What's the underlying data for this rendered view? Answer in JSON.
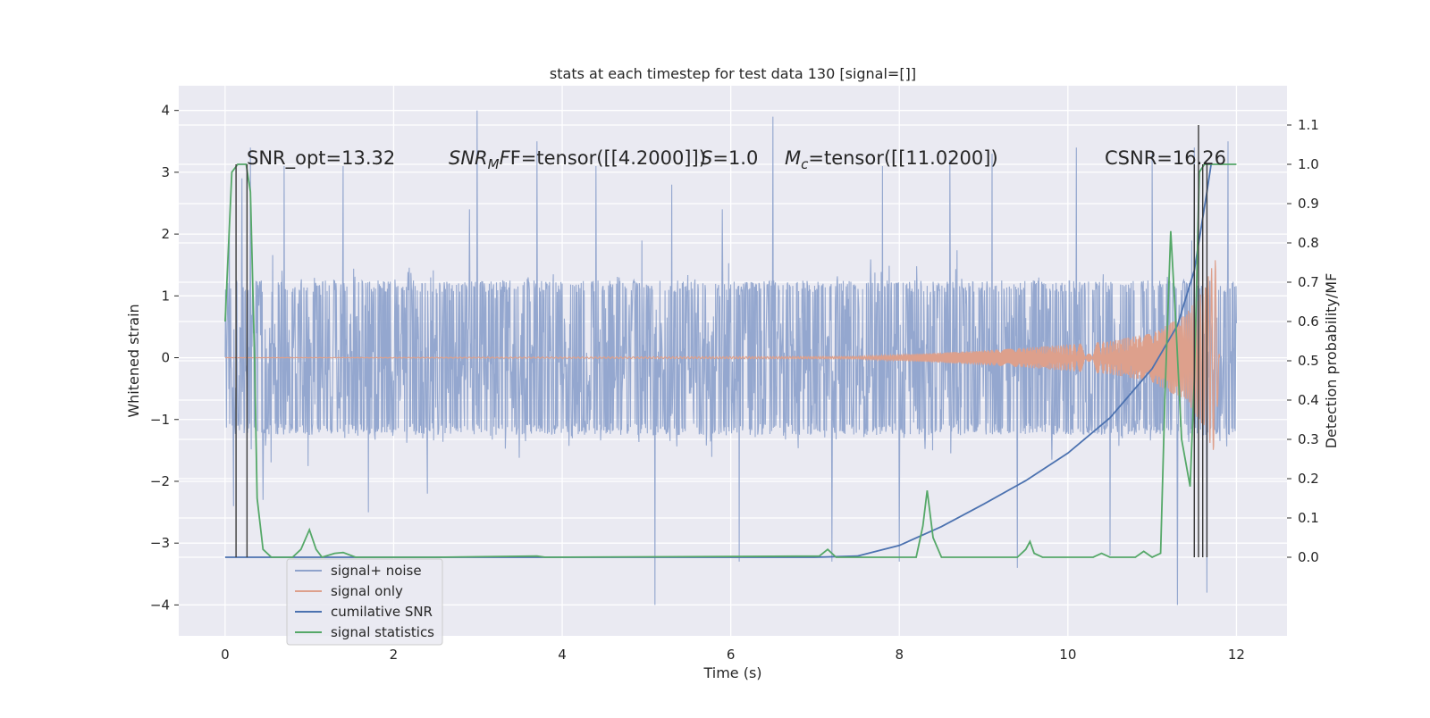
{
  "chart_data": {
    "type": "line",
    "title": "stats at each timestep for test data 130 [signal=[]]",
    "xlabel": "Time (s)",
    "ylabel_left": "Whitened strain",
    "ylabel_right": "Detection probability/MF",
    "xlim": [
      -0.55,
      12.6
    ],
    "ylim_left": [
      -4.5,
      4.4
    ],
    "ylim_right": [
      -0.2,
      1.2
    ],
    "x_ticks": [
      0,
      2,
      4,
      6,
      8,
      10,
      12
    ],
    "x_tick_labels": [
      "0",
      "2",
      "4",
      "6",
      "8",
      "10",
      "12"
    ],
    "y_ticks_left": [
      -4,
      -3,
      -2,
      -1,
      0,
      1,
      2,
      3,
      4
    ],
    "y_tick_labels_left": [
      "−4",
      "−3",
      "−2",
      "−1",
      "0",
      "1",
      "2",
      "3",
      "4"
    ],
    "y_ticks_right": [
      0.0,
      0.1,
      0.2,
      0.3,
      0.4,
      0.5,
      0.6,
      0.7,
      0.8,
      0.9,
      1.0,
      1.1
    ],
    "y_tick_labels_right": [
      "0.0",
      "0.1",
      "0.2",
      "0.3",
      "0.4",
      "0.5",
      "0.6",
      "0.7",
      "0.8",
      "0.9",
      "1.0",
      "1.1"
    ],
    "grid": true,
    "legend_placement": "lower-left",
    "annotations": {
      "snr_opt": "SNR_opt=13.32",
      "snr_mf_main": "SNR",
      "snr_mf_sub": "M",
      "snr_mf_rest": "F=tensor([[4.2000]])",
      "s_label": "S",
      "s_value": "=1.0",
      "mc_label": "M",
      "mc_sub": "c",
      "mc_value": "=tensor([[11.0200])",
      "csnr": "CSNR=16.26"
    },
    "series": [
      {
        "name": "signal+ noise",
        "color": "#8fa3cc",
        "axis": "left",
        "t_range": [
          0,
          12
        ],
        "core_amplitude": 1.25,
        "peak_spikes": [
          {
            "x": 0.05,
            "y": 2.2
          },
          {
            "x": 0.1,
            "y": -2.4
          },
          {
            "x": 0.2,
            "y": 2.9
          },
          {
            "x": 0.3,
            "y": 3.4
          },
          {
            "x": 0.45,
            "y": -2.3
          },
          {
            "x": 0.7,
            "y": 3.1
          },
          {
            "x": 1.4,
            "y": 3.1
          },
          {
            "x": 1.7,
            "y": -2.5
          },
          {
            "x": 2.4,
            "y": -2.2
          },
          {
            "x": 2.9,
            "y": 2.4
          },
          {
            "x": 2.99,
            "y": 4.0
          },
          {
            "x": 3.7,
            "y": 3.5
          },
          {
            "x": 4.4,
            "y": 3.1
          },
          {
            "x": 5.1,
            "y": -4.0
          },
          {
            "x": 5.3,
            "y": 2.8
          },
          {
            "x": 5.9,
            "y": 2.4
          },
          {
            "x": 6.1,
            "y": -3.3
          },
          {
            "x": 6.5,
            "y": 3.9
          },
          {
            "x": 7.2,
            "y": -3.3
          },
          {
            "x": 7.8,
            "y": 3.1
          },
          {
            "x": 8.0,
            "y": -3.3
          },
          {
            "x": 8.6,
            "y": 3.2
          },
          {
            "x": 9.1,
            "y": 3.3
          },
          {
            "x": 9.4,
            "y": -3.4
          },
          {
            "x": 10.1,
            "y": 3.4
          },
          {
            "x": 10.5,
            "y": -3.2
          },
          {
            "x": 11.0,
            "y": 3.3
          },
          {
            "x": 11.3,
            "y": -4.0
          },
          {
            "x": 11.5,
            "y": 3.4
          },
          {
            "x": 11.65,
            "y": -3.8
          },
          {
            "x": 11.9,
            "y": 3.5
          }
        ]
      },
      {
        "name": "signal only",
        "color": "#dda08c",
        "axis": "left",
        "t_range": [
          0,
          11.8
        ],
        "envelope": [
          [
            0,
            0.0
          ],
          [
            7.5,
            0.02
          ],
          [
            8.5,
            0.08
          ],
          [
            9.5,
            0.16
          ],
          [
            10.5,
            0.27
          ],
          [
            11.0,
            0.4
          ],
          [
            11.4,
            0.7
          ],
          [
            11.6,
            1.1
          ],
          [
            11.75,
            1.6
          ],
          [
            11.8,
            0.0
          ]
        ]
      },
      {
        "name": "cumilative SNR",
        "color": "#4c72b0",
        "axis": "right",
        "points": [
          [
            0,
            0.0
          ],
          [
            7.0,
            0.0
          ],
          [
            7.5,
            0.003
          ],
          [
            8.0,
            0.03
          ],
          [
            8.5,
            0.078
          ],
          [
            9.0,
            0.135
          ],
          [
            9.5,
            0.195
          ],
          [
            10.0,
            0.265
          ],
          [
            10.5,
            0.355
          ],
          [
            11.0,
            0.48
          ],
          [
            11.3,
            0.59
          ],
          [
            11.5,
            0.73
          ],
          [
            11.65,
            0.93
          ],
          [
            11.7,
            1.0
          ]
        ]
      },
      {
        "name": "signal statistics",
        "color": "#55a868",
        "axis": "right",
        "points": [
          [
            0,
            0.6
          ],
          [
            0.08,
            0.98
          ],
          [
            0.15,
            1.0
          ],
          [
            0.25,
            1.0
          ],
          [
            0.3,
            0.93
          ],
          [
            0.35,
            0.5
          ],
          [
            0.38,
            0.15
          ],
          [
            0.45,
            0.02
          ],
          [
            0.55,
            0.0
          ],
          [
            0.8,
            0.0
          ],
          [
            0.9,
            0.02
          ],
          [
            1.0,
            0.07
          ],
          [
            1.08,
            0.02
          ],
          [
            1.15,
            0.0
          ],
          [
            1.3,
            0.01
          ],
          [
            1.4,
            0.012
          ],
          [
            1.55,
            0.0
          ],
          [
            2.5,
            0.0
          ],
          [
            3.7,
            0.003
          ],
          [
            3.8,
            0.0
          ],
          [
            7.05,
            0.003
          ],
          [
            7.15,
            0.02
          ],
          [
            7.25,
            0.0
          ],
          [
            8.2,
            0.0
          ],
          [
            8.28,
            0.08
          ],
          [
            8.33,
            0.17
          ],
          [
            8.4,
            0.05
          ],
          [
            8.5,
            0.0
          ],
          [
            9.4,
            0.0
          ],
          [
            9.5,
            0.02
          ],
          [
            9.55,
            0.04
          ],
          [
            9.6,
            0.01
          ],
          [
            9.7,
            0.0
          ],
          [
            10.3,
            0.0
          ],
          [
            10.4,
            0.01
          ],
          [
            10.5,
            0.0
          ],
          [
            10.8,
            0.0
          ],
          [
            10.9,
            0.015
          ],
          [
            11.0,
            0.0
          ],
          [
            11.1,
            0.01
          ],
          [
            11.15,
            0.4
          ],
          [
            11.22,
            0.83
          ],
          [
            11.28,
            0.6
          ],
          [
            11.35,
            0.3
          ],
          [
            11.45,
            0.18
          ],
          [
            11.5,
            0.45
          ],
          [
            11.56,
            0.98
          ],
          [
            11.62,
            1.0
          ],
          [
            12.0,
            1.0
          ]
        ]
      }
    ],
    "vertical_markers": {
      "color": "#3a3a3a",
      "axis": "right",
      "lines": [
        {
          "x": 0.13,
          "y_top": 1.0
        },
        {
          "x": 0.26,
          "y_top": 1.0
        },
        {
          "x": 11.5,
          "y_top": 1.0
        },
        {
          "x": 11.55,
          "y_top": 1.1
        },
        {
          "x": 11.6,
          "y_top": 1.0
        },
        {
          "x": 11.65,
          "y_top": 1.0
        }
      ]
    }
  }
}
